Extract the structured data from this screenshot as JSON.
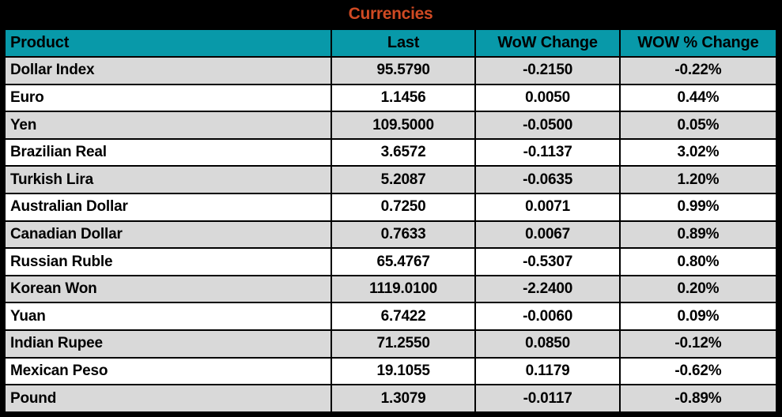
{
  "title": "Currencies",
  "colors": {
    "frame": "#000000",
    "header_bg": "#0899A9",
    "title_color": "#D04A23",
    "row_alt": "#D9D9D9",
    "row_bg": "#FFFFFF",
    "cell_text": "#000000"
  },
  "chart_data": {
    "type": "table",
    "title": "Currencies",
    "columns": [
      "Product",
      "Last",
      "WoW Change",
      "WOW % Change"
    ],
    "rows": [
      {
        "product": "Dollar Index",
        "last": "95.5790",
        "wow_change": "-0.2150",
        "wow_pct_change": "-0.22%"
      },
      {
        "product": "Euro",
        "last": "1.1456",
        "wow_change": "0.0050",
        "wow_pct_change": "0.44%"
      },
      {
        "product": "Yen",
        "last": "109.5000",
        "wow_change": "-0.0500",
        "wow_pct_change": "0.05%"
      },
      {
        "product": "Brazilian Real",
        "last": "3.6572",
        "wow_change": "-0.1137",
        "wow_pct_change": "3.02%"
      },
      {
        "product": "Turkish Lira",
        "last": "5.2087",
        "wow_change": "-0.0635",
        "wow_pct_change": "1.20%"
      },
      {
        "product": "Australian Dollar",
        "last": "0.7250",
        "wow_change": "0.0071",
        "wow_pct_change": "0.99%"
      },
      {
        "product": "Canadian Dollar",
        "last": "0.7633",
        "wow_change": "0.0067",
        "wow_pct_change": "0.89%"
      },
      {
        "product": "Russian Ruble",
        "last": "65.4767",
        "wow_change": "-0.5307",
        "wow_pct_change": "0.80%"
      },
      {
        "product": "Korean Won",
        "last": "1119.0100",
        "wow_change": "-2.2400",
        "wow_pct_change": "0.20%"
      },
      {
        "product": "Yuan",
        "last": "6.7422",
        "wow_change": "-0.0060",
        "wow_pct_change": "0.09%"
      },
      {
        "product": "Indian Rupee",
        "last": "71.2550",
        "wow_change": "0.0850",
        "wow_pct_change": "-0.12%"
      },
      {
        "product": "Mexican Peso",
        "last": "19.1055",
        "wow_change": "0.1179",
        "wow_pct_change": "-0.62%"
      },
      {
        "product": "Pound",
        "last": "1.3079",
        "wow_change": "-0.0117",
        "wow_pct_change": "-0.89%"
      }
    ]
  },
  "table": {
    "columns": [
      "Product",
      "Last",
      "WoW Change",
      "WOW % Change"
    ],
    "rows": [
      {
        "product": "Dollar Index",
        "last": "95.5790",
        "wow_change": "-0.2150",
        "wow_pct_change": "-0.22%"
      },
      {
        "product": "Euro",
        "last": "1.1456",
        "wow_change": "0.0050",
        "wow_pct_change": "0.44%"
      },
      {
        "product": "Yen",
        "last": "109.5000",
        "wow_change": "-0.0500",
        "wow_pct_change": "0.05%"
      },
      {
        "product": "Brazilian Real",
        "last": "3.6572",
        "wow_change": "-0.1137",
        "wow_pct_change": "3.02%"
      },
      {
        "product": "Turkish Lira",
        "last": "5.2087",
        "wow_change": "-0.0635",
        "wow_pct_change": "1.20%"
      },
      {
        "product": "Australian Dollar",
        "last": "0.7250",
        "wow_change": "0.0071",
        "wow_pct_change": "0.99%"
      },
      {
        "product": "Canadian Dollar",
        "last": "0.7633",
        "wow_change": "0.0067",
        "wow_pct_change": "0.89%"
      },
      {
        "product": "Russian Ruble",
        "last": "65.4767",
        "wow_change": "-0.5307",
        "wow_pct_change": "0.80%"
      },
      {
        "product": "Korean Won",
        "last": "1119.0100",
        "wow_change": "-2.2400",
        "wow_pct_change": "0.20%"
      },
      {
        "product": "Yuan",
        "last": "6.7422",
        "wow_change": "-0.0060",
        "wow_pct_change": "0.09%"
      },
      {
        "product": "Indian Rupee",
        "last": "71.2550",
        "wow_change": "0.0850",
        "wow_pct_change": "-0.12%"
      },
      {
        "product": "Mexican Peso",
        "last": "19.1055",
        "wow_change": "0.1179",
        "wow_pct_change": "-0.62%"
      },
      {
        "product": "Pound",
        "last": "1.3079",
        "wow_change": "-0.0117",
        "wow_pct_change": "-0.89%"
      }
    ]
  }
}
